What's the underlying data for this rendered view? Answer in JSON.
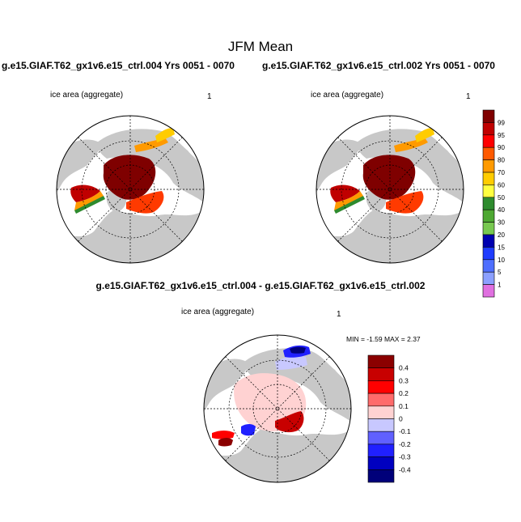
{
  "title": "JFM Mean",
  "case_left": "g.e15.GIAF.T62_gx1v6.e15_ctrl.004  Yrs 0051 - 0070",
  "case_right": "g.e15.GIAF.T62_gx1v6.e15_ctrl.002  Yrs 0051 - 0070",
  "diff_title": "g.e15.GIAF.T62_gx1v6.e15_ctrl.004 - g.e15.GIAF.T62_gx1v6.e15_ctrl.002",
  "panels": [
    {
      "variable": "ice area  (aggregate)",
      "unit": "1"
    },
    {
      "variable": "ice area  (aggregate)",
      "unit": "1"
    },
    {
      "variable": "ice area  (aggregate)",
      "unit": "1"
    }
  ],
  "diff_stats": "MIN =  -1.59 MAX =  2.37",
  "colorbar_main": {
    "labels": [
      "99",
      "95",
      "90",
      "80",
      "70",
      "60",
      "50",
      "40",
      "30",
      "20",
      "15",
      "10",
      "5",
      "1"
    ],
    "colors": [
      "#7f0000",
      "#c00000",
      "#ff0000",
      "#ff5a00",
      "#ff9a00",
      "#ffcc00",
      "#ffff40",
      "#2e8b2e",
      "#4ea832",
      "#78c850",
      "#0000b0",
      "#1f3cff",
      "#4f6fff",
      "#8ca0ff",
      "#e070e0"
    ]
  },
  "colorbar_diff": {
    "labels": [
      "0.4",
      "0.3",
      "0.2",
      "0.1",
      "0",
      "-0.1",
      "-0.2",
      "-0.3",
      "-0.4"
    ],
    "colors": [
      "#8b0000",
      "#c80000",
      "#ff0000",
      "#ff6a6a",
      "#ffd2d2",
      "#c8c8ff",
      "#6060ff",
      "#2020ff",
      "#0000c0",
      "#00007a"
    ]
  }
}
